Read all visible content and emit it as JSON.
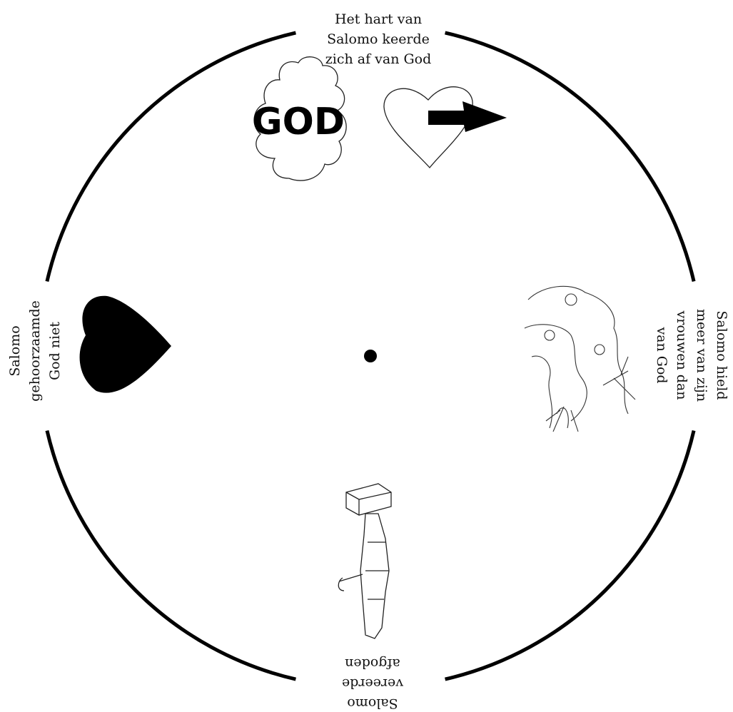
{
  "segments": {
    "top": {
      "lines": [
        "Het hart van",
        "Salomo keerde",
        "zich af van God"
      ]
    },
    "right": {
      "lines": [
        "Salomo hield",
        "meer van zijn",
        "vrouwen dan",
        "van God"
      ]
    },
    "bottom": {
      "lines": [
        "Salomo",
        "vereerde",
        "afgoden"
      ]
    },
    "left": {
      "lines": [
        "Salomo",
        "gehoorzaamde",
        "God niet"
      ]
    }
  },
  "cloud_label": "GOD"
}
